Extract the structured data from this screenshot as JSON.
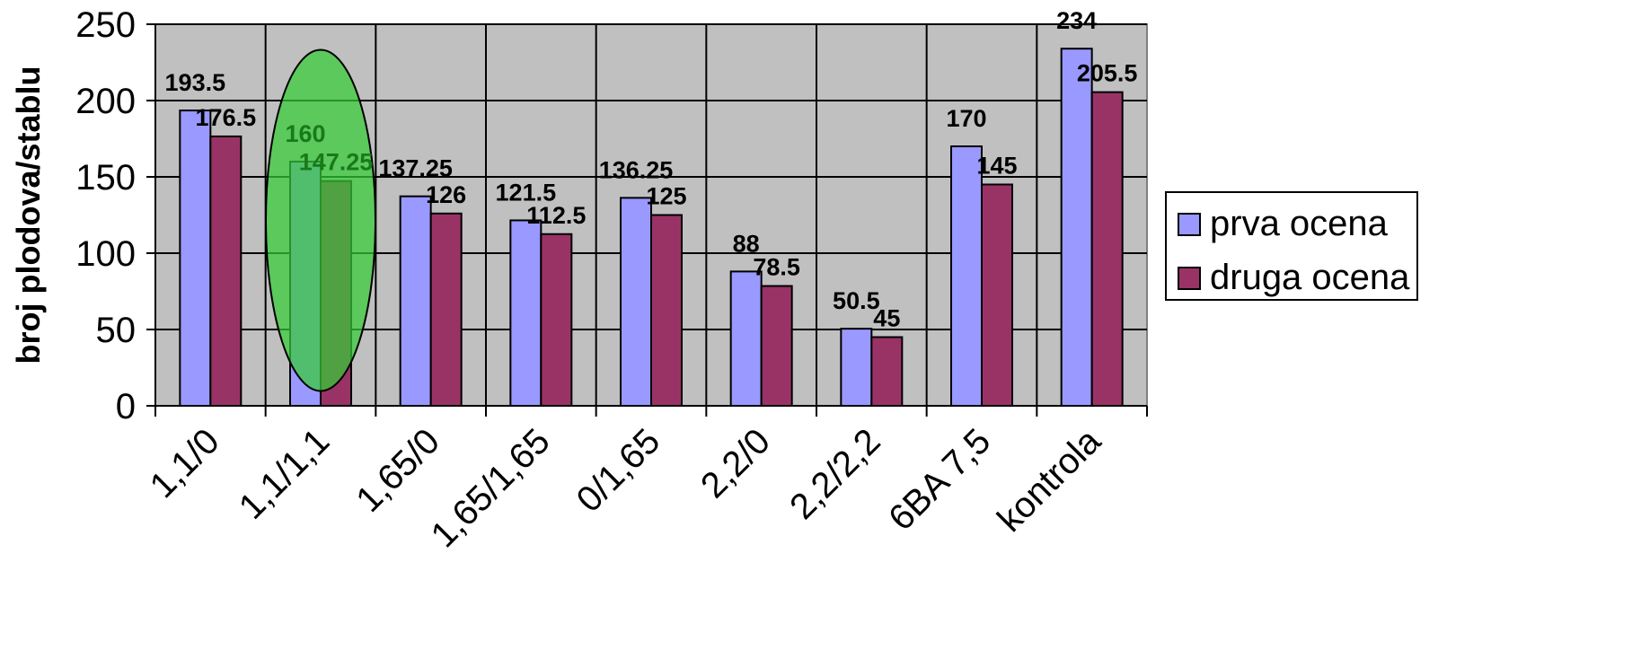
{
  "chart_data": {
    "type": "bar",
    "title": "",
    "xlabel": "",
    "ylabel": "broj plodova/stablu",
    "ylim": [
      0,
      250
    ],
    "yticks": [
      0,
      50,
      100,
      150,
      200,
      250
    ],
    "grid": true,
    "legend_position": "right",
    "plot_background": "#c0c0c0",
    "categories": [
      "1,1/0",
      "1,1/1,1",
      "1,65/0",
      "1,65/1,65",
      "0/1,65",
      "2,2/0",
      "2,2/2,2",
      "6BA 7,5",
      "kontrola"
    ],
    "series": [
      {
        "name": "prva ocena",
        "color": "#9999ff",
        "values": [
          193.5,
          160,
          137.25,
          121.5,
          136.25,
          88,
          50.5,
          170,
          234
        ],
        "labels": [
          "193.5",
          "160",
          "137.25",
          "121.5",
          "136.25",
          "88",
          "50.5",
          "170",
          "234"
        ]
      },
      {
        "name": "druga ocena",
        "color": "#993366",
        "values": [
          176.5,
          147.25,
          126,
          112.5,
          125,
          78.5,
          45,
          145,
          205.5
        ],
        "labels": [
          "176.5",
          "147.25",
          "126",
          "112.5",
          "125",
          "78.5",
          "45",
          "145",
          "205.5"
        ]
      }
    ],
    "highlight": {
      "category_index": 1,
      "shape": "ellipse",
      "fill": "#33cc33",
      "label_color": "#1a7a1a"
    }
  }
}
